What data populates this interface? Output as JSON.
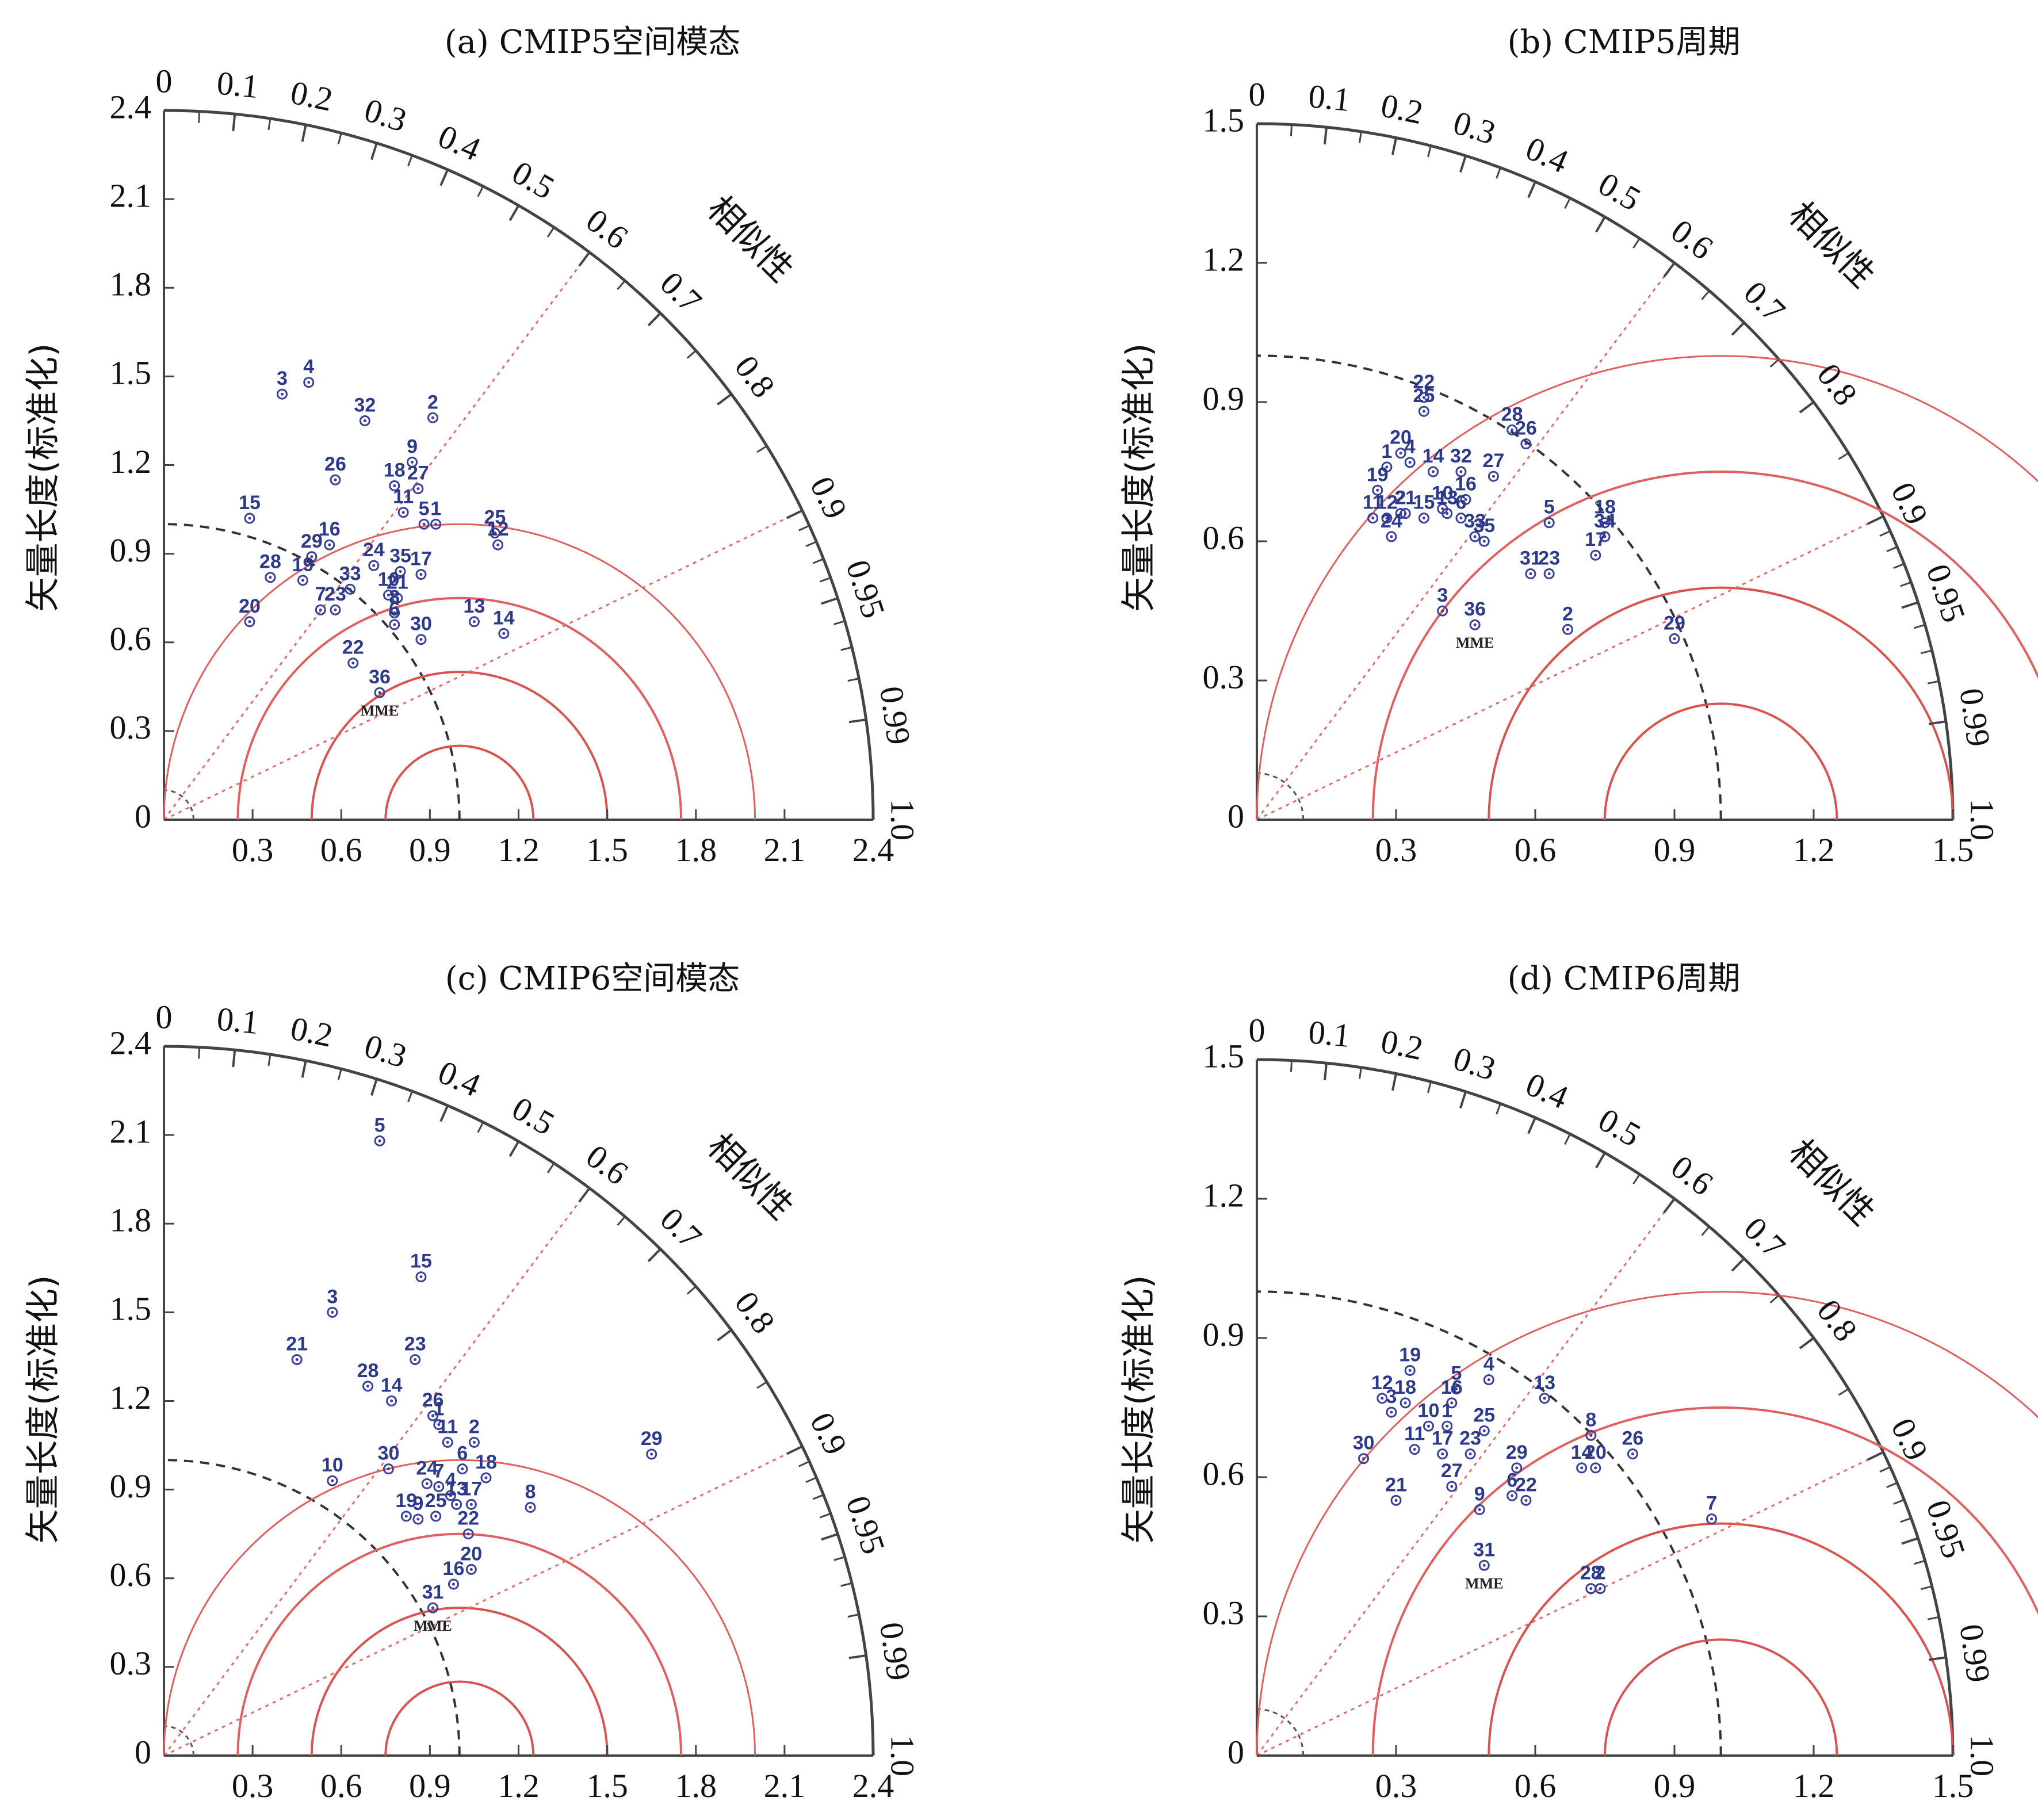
{
  "chart_data": [
    {
      "type": "scatter",
      "title": "(a) CMIP5空间模态",
      "ylabel": "矢量长度(标准化)",
      "corr_label": "相似性",
      "rmax": 2.4,
      "r_ticks": [
        "0",
        "0.3",
        "0.6",
        "0.9",
        "1.2",
        "1.5",
        "1.8",
        "2.1",
        "2.4"
      ],
      "y_ticks": [
        "0",
        "0.3",
        "0.6",
        "0.9",
        "1.2",
        "1.5",
        "1.8",
        "2.1",
        "2.4"
      ],
      "x_ticks": [
        "0.3",
        "0.6",
        "0.9",
        "1.2",
        "1.5",
        "1.8",
        "2.1",
        "2.4"
      ],
      "corr_ticks": [
        "0",
        "0.1",
        "0.2",
        "0.3",
        "0.4",
        "0.5",
        "0.6",
        "0.7",
        "0.8",
        "0.9",
        "0.95",
        "0.99",
        "1.0"
      ],
      "points": [
        {
          "label": "3",
          "x": 0.4,
          "y": 1.44
        },
        {
          "label": "4",
          "x": 0.49,
          "y": 1.48
        },
        {
          "label": "32",
          "x": 0.68,
          "y": 1.35
        },
        {
          "label": "2",
          "x": 0.91,
          "y": 1.36
        },
        {
          "label": "9",
          "x": 0.84,
          "y": 1.21
        },
        {
          "label": "26",
          "x": 0.58,
          "y": 1.15
        },
        {
          "label": "18",
          "x": 0.78,
          "y": 1.13
        },
        {
          "label": "27",
          "x": 0.86,
          "y": 1.12
        },
        {
          "label": "11",
          "x": 0.81,
          "y": 1.04
        },
        {
          "label": "5",
          "x": 0.88,
          "y": 1.0
        },
        {
          "label": "1",
          "x": 0.92,
          "y": 1.0
        },
        {
          "label": "15",
          "x": 0.29,
          "y": 1.02
        },
        {
          "label": "25",
          "x": 1.12,
          "y": 0.97
        },
        {
          "label": "12",
          "x": 1.13,
          "y": 0.93
        },
        {
          "label": "16",
          "x": 0.56,
          "y": 0.93
        },
        {
          "label": "29",
          "x": 0.5,
          "y": 0.89
        },
        {
          "label": "24",
          "x": 0.71,
          "y": 0.86
        },
        {
          "label": "35",
          "x": 0.8,
          "y": 0.84
        },
        {
          "label": "17",
          "x": 0.87,
          "y": 0.83
        },
        {
          "label": "28",
          "x": 0.36,
          "y": 0.82
        },
        {
          "label": "19",
          "x": 0.47,
          "y": 0.81
        },
        {
          "label": "33",
          "x": 0.63,
          "y": 0.78
        },
        {
          "label": "10",
          "x": 0.76,
          "y": 0.76
        },
        {
          "label": "21",
          "x": 0.79,
          "y": 0.75
        },
        {
          "label": "8",
          "x": 0.78,
          "y": 0.7
        },
        {
          "label": "6",
          "x": 0.78,
          "y": 0.66
        },
        {
          "label": "7",
          "x": 0.53,
          "y": 0.71
        },
        {
          "label": "23",
          "x": 0.58,
          "y": 0.71
        },
        {
          "label": "20",
          "x": 0.29,
          "y": 0.67
        },
        {
          "label": "13",
          "x": 1.05,
          "y": 0.67
        },
        {
          "label": "14",
          "x": 1.15,
          "y": 0.63
        },
        {
          "label": "30",
          "x": 0.87,
          "y": 0.61
        },
        {
          "label": "22",
          "x": 0.64,
          "y": 0.53
        },
        {
          "label": "36",
          "x": 0.73,
          "y": 0.43
        }
      ],
      "mme": {
        "label": "MME",
        "x": 0.73,
        "y": 0.43
      }
    },
    {
      "type": "scatter",
      "title": "(b) CMIP5周期",
      "ylabel": "矢量长度(标准化)",
      "corr_label": "相似性",
      "rmax": 1.5,
      "r_ticks": [
        "0",
        "0.3",
        "0.6",
        "0.9",
        "1.2",
        "1.5"
      ],
      "y_ticks": [
        "0",
        "0.3",
        "0.6",
        "0.9",
        "1.2",
        "1.5"
      ],
      "x_ticks": [
        "0.3",
        "0.6",
        "0.9",
        "1.2",
        "1.5"
      ],
      "corr_ticks": [
        "0",
        "0.1",
        "0.2",
        "0.3",
        "0.4",
        "0.5",
        "0.6",
        "0.7",
        "0.8",
        "0.9",
        "0.95",
        "0.99",
        "1.0"
      ],
      "points": [
        {
          "label": "22",
          "x": 0.36,
          "y": 0.91
        },
        {
          "label": "25",
          "x": 0.36,
          "y": 0.88
        },
        {
          "label": "28",
          "x": 0.55,
          "y": 0.84
        },
        {
          "label": "26",
          "x": 0.58,
          "y": 0.81
        },
        {
          "label": "20",
          "x": 0.31,
          "y": 0.79
        },
        {
          "label": "4",
          "x": 0.33,
          "y": 0.77
        },
        {
          "label": "1",
          "x": 0.28,
          "y": 0.76
        },
        {
          "label": "14",
          "x": 0.38,
          "y": 0.75
        },
        {
          "label": "32",
          "x": 0.44,
          "y": 0.75
        },
        {
          "label": "27",
          "x": 0.51,
          "y": 0.74
        },
        {
          "label": "19",
          "x": 0.26,
          "y": 0.71
        },
        {
          "label": "16",
          "x": 0.45,
          "y": 0.69
        },
        {
          "label": "21",
          "x": 0.32,
          "y": 0.66
        },
        {
          "label": "10",
          "x": 0.4,
          "y": 0.67
        },
        {
          "label": "11",
          "x": 0.25,
          "y": 0.65
        },
        {
          "label": "12",
          "x": 0.28,
          "y": 0.65
        },
        {
          "label": "2",
          "x": 0.31,
          "y": 0.66
        },
        {
          "label": "15",
          "x": 0.36,
          "y": 0.65
        },
        {
          "label": "13",
          "x": 0.41,
          "y": 0.66
        },
        {
          "label": "6",
          "x": 0.44,
          "y": 0.65
        },
        {
          "label": "5",
          "x": 0.63,
          "y": 0.64
        },
        {
          "label": "24",
          "x": 0.29,
          "y": 0.61
        },
        {
          "label": "33",
          "x": 0.47,
          "y": 0.61
        },
        {
          "label": "35",
          "x": 0.49,
          "y": 0.6
        },
        {
          "label": "18",
          "x": 0.75,
          "y": 0.64
        },
        {
          "label": "34",
          "x": 0.75,
          "y": 0.61
        },
        {
          "label": "17",
          "x": 0.73,
          "y": 0.57
        },
        {
          "label": "31",
          "x": 0.59,
          "y": 0.53
        },
        {
          "label": "23",
          "x": 0.63,
          "y": 0.53
        },
        {
          "label": "3",
          "x": 0.4,
          "y": 0.45
        },
        {
          "label": "36",
          "x": 0.47,
          "y": 0.42
        },
        {
          "label": "2",
          "x": 0.67,
          "y": 0.41
        },
        {
          "label": "29",
          "x": 0.9,
          "y": 0.39
        }
      ],
      "mme": {
        "label": "MME",
        "x": 0.47,
        "y": 0.42
      }
    },
    {
      "type": "scatter",
      "title": "(c) CMIP6空间模态",
      "ylabel": "矢量长度(标准化)",
      "corr_label": "相似性",
      "rmax": 2.4,
      "r_ticks": [
        "0",
        "0.3",
        "0.6",
        "0.9",
        "1.2",
        "1.5",
        "1.8",
        "2.1",
        "2.4"
      ],
      "y_ticks": [
        "0",
        "0.3",
        "0.6",
        "0.9",
        "1.2",
        "1.5",
        "1.8",
        "2.1",
        "2.4"
      ],
      "x_ticks": [
        "0.3",
        "0.6",
        "0.9",
        "1.2",
        "1.5",
        "1.8",
        "2.1",
        "2.4"
      ],
      "corr_ticks": [
        "0",
        "0.1",
        "0.2",
        "0.3",
        "0.4",
        "0.5",
        "0.6",
        "0.7",
        "0.8",
        "0.9",
        "0.95",
        "0.99",
        "1.0"
      ],
      "points": [
        {
          "label": "5",
          "x": 0.73,
          "y": 2.08
        },
        {
          "label": "15",
          "x": 0.87,
          "y": 1.62
        },
        {
          "label": "3",
          "x": 0.57,
          "y": 1.5
        },
        {
          "label": "21",
          "x": 0.45,
          "y": 1.34
        },
        {
          "label": "23",
          "x": 0.85,
          "y": 1.34
        },
        {
          "label": "28",
          "x": 0.69,
          "y": 1.25
        },
        {
          "label": "14",
          "x": 0.77,
          "y": 1.2
        },
        {
          "label": "26",
          "x": 0.91,
          "y": 1.15
        },
        {
          "label": "1",
          "x": 0.93,
          "y": 1.12
        },
        {
          "label": "11",
          "x": 0.96,
          "y": 1.06
        },
        {
          "label": "2",
          "x": 1.05,
          "y": 1.06
        },
        {
          "label": "29",
          "x": 1.65,
          "y": 1.02
        },
        {
          "label": "30",
          "x": 0.76,
          "y": 0.97
        },
        {
          "label": "6",
          "x": 1.01,
          "y": 0.97
        },
        {
          "label": "18",
          "x": 1.09,
          "y": 0.94
        },
        {
          "label": "10",
          "x": 0.57,
          "y": 0.93
        },
        {
          "label": "24",
          "x": 0.89,
          "y": 0.92
        },
        {
          "label": "7",
          "x": 0.93,
          "y": 0.91
        },
        {
          "label": "4",
          "x": 0.97,
          "y": 0.88
        },
        {
          "label": "13",
          "x": 0.99,
          "y": 0.85
        },
        {
          "label": "17",
          "x": 1.04,
          "y": 0.85
        },
        {
          "label": "8",
          "x": 1.24,
          "y": 0.84
        },
        {
          "label": "19",
          "x": 0.82,
          "y": 0.81
        },
        {
          "label": "9",
          "x": 0.86,
          "y": 0.8
        },
        {
          "label": "25",
          "x": 0.92,
          "y": 0.81
        },
        {
          "label": "22",
          "x": 1.03,
          "y": 0.75
        },
        {
          "label": "20",
          "x": 1.04,
          "y": 0.63
        },
        {
          "label": "16",
          "x": 0.98,
          "y": 0.58
        },
        {
          "label": "31",
          "x": 0.91,
          "y": 0.5
        }
      ],
      "mme": {
        "label": "MME",
        "x": 0.91,
        "y": 0.5
      }
    },
    {
      "type": "scatter",
      "title": "(d) CMIP6周期",
      "ylabel": "矢量长度(标准化)",
      "corr_label": "相似性",
      "rmax": 1.5,
      "r_ticks": [
        "0",
        "0.3",
        "0.6",
        "0.9",
        "1.2",
        "1.5"
      ],
      "y_ticks": [
        "0",
        "0.3",
        "0.6",
        "0.9",
        "1.2",
        "1.5"
      ],
      "x_ticks": [
        "0.3",
        "0.6",
        "0.9",
        "1.2",
        "1.5"
      ],
      "corr_ticks": [
        "0",
        "0.1",
        "0.2",
        "0.3",
        "0.4",
        "0.5",
        "0.6",
        "0.7",
        "0.8",
        "0.9",
        "0.95",
        "0.99",
        "1.0"
      ],
      "points": [
        {
          "label": "19",
          "x": 0.33,
          "y": 0.83
        },
        {
          "label": "4",
          "x": 0.5,
          "y": 0.81
        },
        {
          "label": "5",
          "x": 0.43,
          "y": 0.79
        },
        {
          "label": "13",
          "x": 0.62,
          "y": 0.77
        },
        {
          "label": "12",
          "x": 0.27,
          "y": 0.77
        },
        {
          "label": "18",
          "x": 0.32,
          "y": 0.76
        },
        {
          "label": "16",
          "x": 0.42,
          "y": 0.76
        },
        {
          "label": "3",
          "x": 0.29,
          "y": 0.74
        },
        {
          "label": "10",
          "x": 0.37,
          "y": 0.71
        },
        {
          "label": "1",
          "x": 0.41,
          "y": 0.71
        },
        {
          "label": "25",
          "x": 0.49,
          "y": 0.7
        },
        {
          "label": "8",
          "x": 0.72,
          "y": 0.69
        },
        {
          "label": "26",
          "x": 0.81,
          "y": 0.65
        },
        {
          "label": "11",
          "x": 0.34,
          "y": 0.66
        },
        {
          "label": "17",
          "x": 0.4,
          "y": 0.65
        },
        {
          "label": "23",
          "x": 0.46,
          "y": 0.65
        },
        {
          "label": "30",
          "x": 0.23,
          "y": 0.64
        },
        {
          "label": "29",
          "x": 0.56,
          "y": 0.62
        },
        {
          "label": "14",
          "x": 0.7,
          "y": 0.62
        },
        {
          "label": "20",
          "x": 0.73,
          "y": 0.62
        },
        {
          "label": "27",
          "x": 0.42,
          "y": 0.58
        },
        {
          "label": "21",
          "x": 0.3,
          "y": 0.55
        },
        {
          "label": "6",
          "x": 0.55,
          "y": 0.56
        },
        {
          "label": "22",
          "x": 0.58,
          "y": 0.55
        },
        {
          "label": "9",
          "x": 0.48,
          "y": 0.53
        },
        {
          "label": "7",
          "x": 0.98,
          "y": 0.51
        },
        {
          "label": "31",
          "x": 0.49,
          "y": 0.41
        },
        {
          "label": "28",
          "x": 0.72,
          "y": 0.36
        },
        {
          "label": "2",
          "x": 0.74,
          "y": 0.36
        }
      ],
      "mme": {
        "label": "MME",
        "x": 0.49,
        "y": 0.41
      }
    }
  ]
}
